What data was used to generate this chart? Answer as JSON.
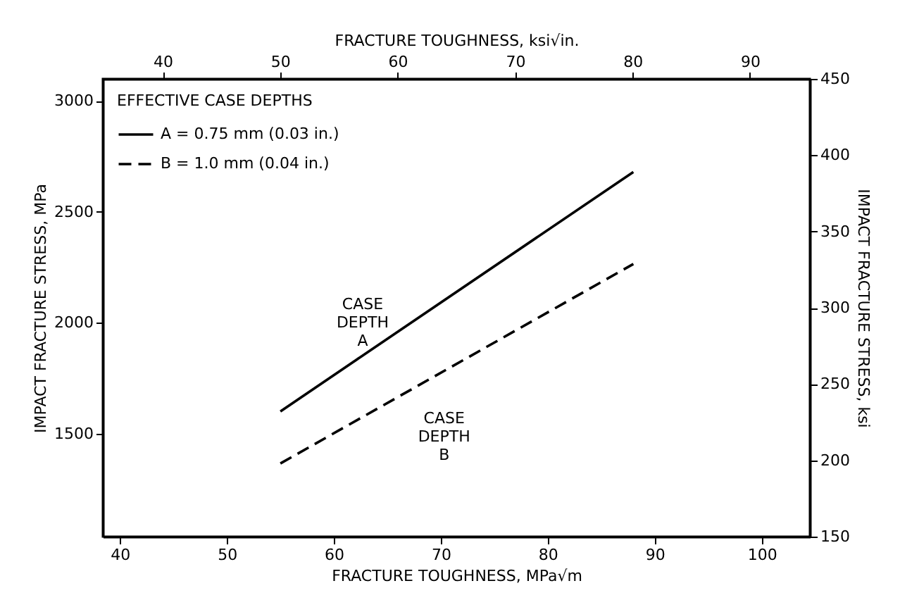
{
  "chart_data": {
    "type": "line",
    "xlabel": "FRACTURE TOUGHNESS, MPa√m",
    "x2label": "FRACTURE TOUGHNESS, ksi√in.",
    "ylabel": "IMPACT FRACTURE STRESS, MPa",
    "y2label": "IMPACT FRACTURE STRESS, ksi",
    "legend_title": "EFFECTIVE CASE DEPTHS",
    "xlim": [
      38.4,
      104.5
    ],
    "xticks": [
      40,
      50,
      60,
      70,
      80,
      90,
      100
    ],
    "x2lim": [
      34.9,
      95.1
    ],
    "x2ticks": [
      40,
      50,
      60,
      70,
      80,
      90
    ],
    "ylim": [
      1035,
      3100
    ],
    "yticks": [
      1500,
      2000,
      2500,
      3000
    ],
    "y2lim": [
      150,
      450
    ],
    "y2ticks": [
      150,
      200,
      250,
      300,
      350,
      400,
      450
    ],
    "x": [
      55,
      88
    ],
    "grid": false,
    "legend": "top left",
    "marker": "none",
    "series": [
      {
        "name": "A = 0.75 mm (0.03 in.)",
        "color": "#000000",
        "line_style": "solid",
        "values": [
          1600,
          2680
        ]
      },
      {
        "name": "B = 1.0 mm (0.04 in.)",
        "color": "#000000",
        "line_style": "dashed",
        "values": [
          1365,
          2265
        ]
      }
    ],
    "annotations": [
      "CASE\nDEPTH\nA",
      "CASE\nDEPTH\nB"
    ]
  }
}
